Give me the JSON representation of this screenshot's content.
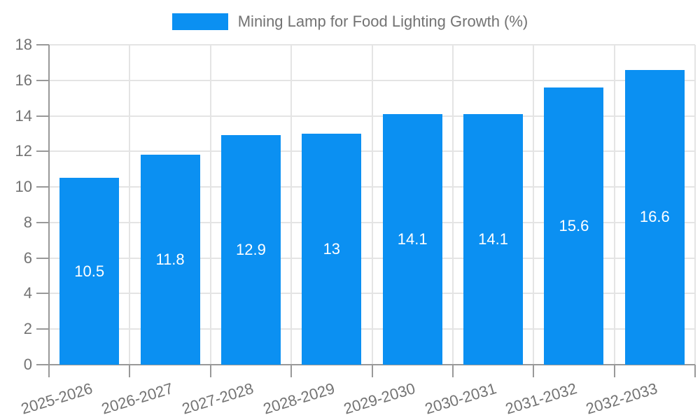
{
  "chart_data": {
    "type": "bar",
    "title": "Mining Lamp for Food Lighting Growth (%)",
    "categories": [
      "2025-2026",
      "2026-2027",
      "2027-2028",
      "2028-2029",
      "2029-2030",
      "2030-2031",
      "2031-2032",
      "2032-2033"
    ],
    "values": [
      10.5,
      11.8,
      12.9,
      13,
      14.1,
      14.1,
      15.6,
      16.6
    ],
    "bar_labels": [
      "10.5",
      "11.8",
      "12.9",
      "13",
      "14.1",
      "14.1",
      "15.6",
      "16.6"
    ],
    "xlabel": "",
    "ylabel": "",
    "ylim": [
      0,
      18
    ],
    "ytick_step": 2,
    "yticks": [
      0,
      2,
      4,
      6,
      8,
      10,
      12,
      14,
      16,
      18
    ],
    "grid": true,
    "legend_position": "top-center"
  },
  "legend": {
    "label": "Mining Lamp for Food Lighting Growth (%)"
  },
  "colors": {
    "bar": "#0b90f2",
    "grid": "#e4e4e4",
    "axis": "#999999",
    "tick_label": "#737373",
    "bar_label": "#ffffff",
    "background": "#ffffff"
  }
}
